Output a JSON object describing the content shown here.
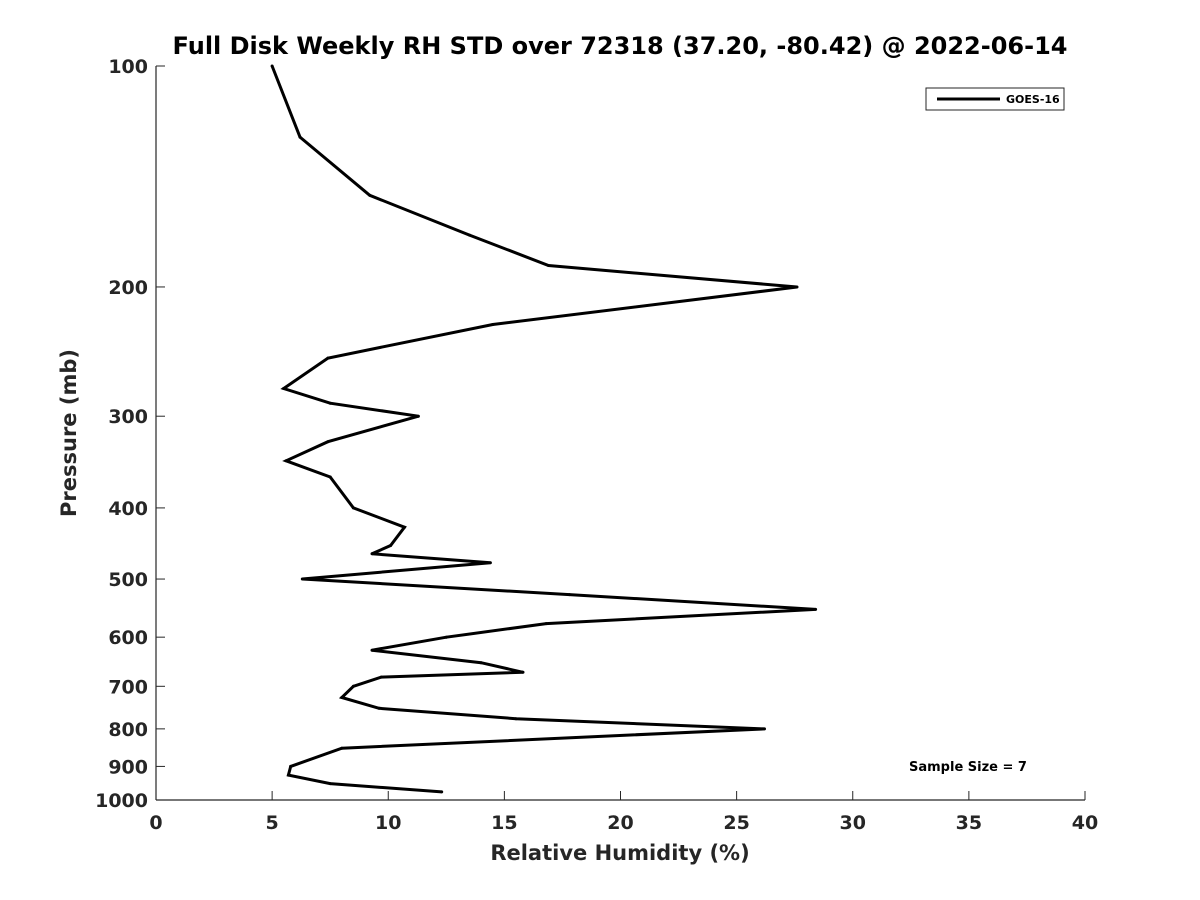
{
  "chart_data": {
    "type": "line",
    "title": "Full Disk Weekly RH STD over 72318 (37.20, -80.42) @ 2022-06-14",
    "xlabel": "Relative Humidity (%)",
    "ylabel": "Pressure (mb)",
    "xlim": [
      0,
      40
    ],
    "ylim": [
      100,
      1000
    ],
    "y_scale": "log",
    "y_reversed": true,
    "grid": false,
    "legend_position": "top-right",
    "x_ticks": [
      0,
      5,
      10,
      15,
      20,
      25,
      30,
      35,
      40
    ],
    "x_tick_labels": [
      "0",
      "5",
      "10",
      "15",
      "20",
      "25",
      "30",
      "35",
      "40"
    ],
    "y_ticks": [
      100,
      200,
      300,
      400,
      500,
      600,
      700,
      800,
      900,
      1000
    ],
    "y_tick_labels": [
      "100",
      "200",
      "300",
      "400",
      "500",
      "600",
      "700",
      "800",
      "900",
      "1000"
    ],
    "series": [
      {
        "name": "GOES-16",
        "color": "#000000",
        "points": [
          {
            "x": 5.0,
            "y": 100
          },
          {
            "x": 6.2,
            "y": 125
          },
          {
            "x": 9.2,
            "y": 150
          },
          {
            "x": 13.5,
            "y": 170
          },
          {
            "x": 16.9,
            "y": 187
          },
          {
            "x": 27.6,
            "y": 200
          },
          {
            "x": 14.5,
            "y": 225
          },
          {
            "x": 7.4,
            "y": 250
          },
          {
            "x": 5.5,
            "y": 275
          },
          {
            "x": 7.5,
            "y": 288
          },
          {
            "x": 11.3,
            "y": 300
          },
          {
            "x": 7.4,
            "y": 325
          },
          {
            "x": 5.6,
            "y": 345
          },
          {
            "x": 7.5,
            "y": 363
          },
          {
            "x": 8.5,
            "y": 400
          },
          {
            "x": 10.7,
            "y": 425
          },
          {
            "x": 10.1,
            "y": 450
          },
          {
            "x": 9.3,
            "y": 462
          },
          {
            "x": 14.4,
            "y": 475
          },
          {
            "x": 6.3,
            "y": 500
          },
          {
            "x": 17.8,
            "y": 525
          },
          {
            "x": 28.4,
            "y": 550
          },
          {
            "x": 16.8,
            "y": 575
          },
          {
            "x": 12.5,
            "y": 600
          },
          {
            "x": 9.3,
            "y": 625
          },
          {
            "x": 14.0,
            "y": 650
          },
          {
            "x": 15.8,
            "y": 670
          },
          {
            "x": 9.7,
            "y": 680
          },
          {
            "x": 8.5,
            "y": 700
          },
          {
            "x": 8.0,
            "y": 725
          },
          {
            "x": 9.6,
            "y": 750
          },
          {
            "x": 15.5,
            "y": 775
          },
          {
            "x": 26.2,
            "y": 800
          },
          {
            "x": 8.0,
            "y": 850
          },
          {
            "x": 5.8,
            "y": 900
          },
          {
            "x": 5.7,
            "y": 925
          },
          {
            "x": 7.5,
            "y": 950
          },
          {
            "x": 12.3,
            "y": 975
          }
        ]
      }
    ],
    "annotations": [
      {
        "text": "Sample Size = 7",
        "position": "bottom-right"
      }
    ]
  }
}
